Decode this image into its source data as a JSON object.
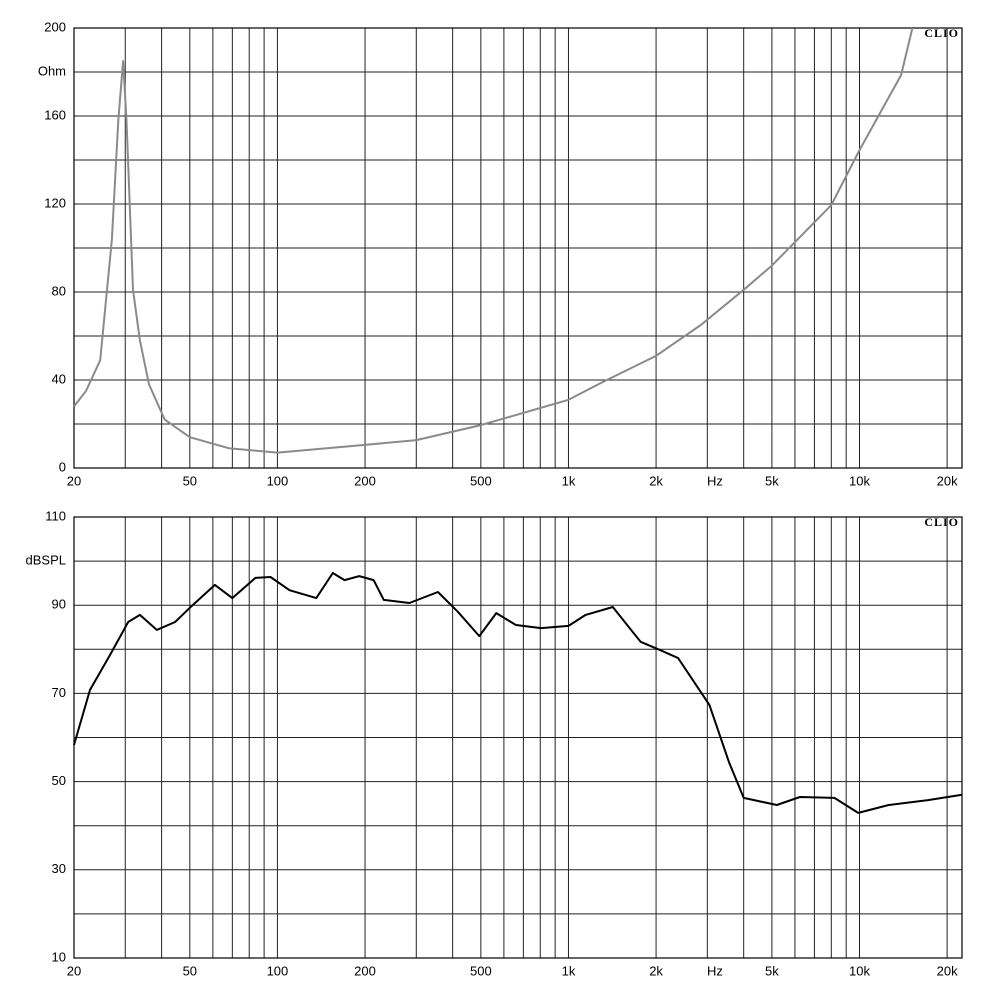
{
  "chart_data": [
    {
      "type": "line",
      "xscale": "log",
      "grid": true,
      "watermark": "CLIO",
      "ylabel": "Ohm",
      "xlabel": "Hz",
      "color": "#8a8a8a",
      "xlim": [
        20,
        22500
      ],
      "ylim": [
        0,
        200
      ],
      "xticks": [
        20,
        50,
        100,
        200,
        500,
        {
          "value": 1000,
          "label": "1k"
        },
        {
          "value": 2000,
          "label": "2k"
        },
        {
          "value": 5000,
          "label": "5k"
        },
        {
          "value": 10000,
          "label": "10k"
        },
        {
          "value": 20000,
          "label": "20k"
        }
      ],
      "xminor_ticks": [
        30,
        40,
        60,
        70,
        80,
        90,
        300,
        400,
        600,
        700,
        800,
        900,
        3000,
        4000,
        6000,
        7000,
        8000,
        9000
      ],
      "yticks": [
        0,
        40,
        80,
        120,
        160,
        200
      ],
      "yminor_ticks": [
        20,
        60,
        100,
        140,
        180
      ],
      "x": [
        20,
        22,
        24.6,
        27,
        28.4,
        29.5,
        30.3,
        31.9,
        33.7,
        36.2,
        41,
        50,
        68,
        100,
        200,
        300,
        500,
        1000,
        1290,
        2000,
        2850,
        4000,
        5000,
        8000,
        10000,
        13900,
        15200
      ],
      "values": [
        28,
        35,
        49,
        104,
        158,
        185,
        158,
        81,
        58,
        38,
        22,
        14,
        9,
        7,
        10.5,
        12.7,
        19.5,
        31,
        38.6,
        51,
        65,
        81,
        92,
        119.5,
        144.5,
        178.6,
        200
      ]
    },
    {
      "type": "line",
      "xscale": "log",
      "grid": true,
      "watermark": "CLIO",
      "ylabel": "dBSPL",
      "xlabel": "Hz",
      "color": "#000000",
      "xlim": [
        20,
        22500
      ],
      "ylim": [
        10,
        110
      ],
      "xticks": [
        20,
        50,
        100,
        200,
        500,
        {
          "value": 1000,
          "label": "1k"
        },
        {
          "value": 2000,
          "label": "2k"
        },
        {
          "value": 5000,
          "label": "5k"
        },
        {
          "value": 10000,
          "label": "10k"
        },
        {
          "value": 20000,
          "label": "20k"
        }
      ],
      "xminor_ticks": [
        30,
        40,
        60,
        70,
        80,
        90,
        300,
        400,
        600,
        700,
        800,
        900,
        3000,
        4000,
        6000,
        7000,
        8000,
        9000
      ],
      "yticks": [
        10,
        30,
        50,
        70,
        90,
        110
      ],
      "yminor_ticks": [
        20,
        40,
        60,
        80,
        100
      ],
      "x": [
        20,
        22.7,
        26.6,
        30.7,
        33.7,
        38.5,
        44.5,
        50,
        61,
        70,
        84,
        94.7,
        110,
        136,
        155,
        170,
        191,
        214,
        232,
        284,
        356,
        417,
        494,
        565,
        660,
        805,
        1000,
        1145,
        1420,
        1770,
        2070,
        2380,
        3050,
        3560,
        4000,
        5200,
        6240,
        8200,
        9900,
        12600,
        17200,
        22500
      ],
      "values": [
        58.3,
        70.8,
        78.7,
        86.2,
        87.8,
        84.4,
        86.2,
        89.4,
        94.6,
        91.6,
        96.2,
        96.4,
        93.4,
        91.6,
        97.3,
        95.7,
        96.6,
        95.7,
        91.2,
        90.5,
        93.0,
        88.5,
        83.0,
        88.2,
        85.5,
        84.8,
        85.3,
        87.8,
        89.6,
        81.7,
        79.8,
        78.0,
        67.4,
        54.4,
        46.3,
        44.7,
        46.5,
        46.3,
        42.9,
        44.7,
        45.8,
        47.0
      ]
    }
  ]
}
